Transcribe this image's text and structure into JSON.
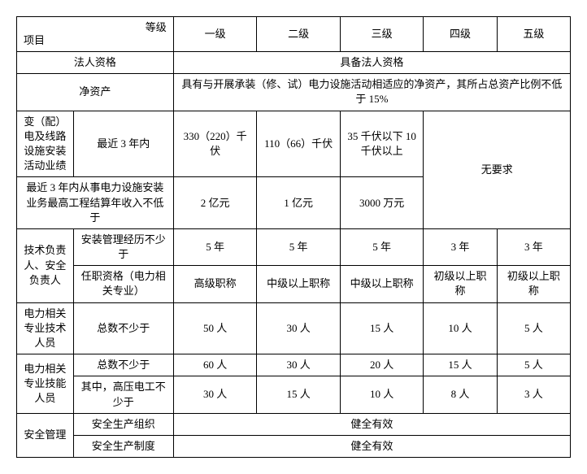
{
  "meta": {
    "font_family": "SimSun",
    "font_size": 13,
    "border_color": "#000000",
    "background_color": "#ffffff",
    "text_color": "#000000"
  },
  "header": {
    "corner_top": "等级",
    "corner_bottom": "项目",
    "levels": [
      "一级",
      "二级",
      "三级",
      "四级",
      "五级"
    ]
  },
  "rows": {
    "legal": {
      "label": "法人资格",
      "value": "具备法人资格"
    },
    "net_assets": {
      "label": "净资产",
      "value": "具有与开展承装（修、试）电力设施活动相适应的净资产，其所占总资产比例不低于 15%"
    },
    "performance": {
      "group_label": "变（配）电及线路设施安装活动业绩",
      "sub_label": "最近 3 年内",
      "lv1": "330（220）千伏",
      "lv2": "110（66）千伏",
      "lv3": "35 千伏以下 10 千伏以上",
      "no_req": "无要求"
    },
    "revenue": {
      "label": "最近 3 年内从事电力设施安装业务最高工程结算年收入不低于",
      "lv1": "2 亿元",
      "lv2": "1 亿元",
      "lv3": "3000 万元"
    },
    "tech_lead": {
      "group_label": "技术负责人、安全负责人",
      "exp_label": "安装管理经历不少于",
      "exp": {
        "lv1": "5 年",
        "lv2": "5 年",
        "lv3": "5 年",
        "lv4": "3 年",
        "lv5": "3 年"
      },
      "title_label": "任职资格（电力相关专业）",
      "title": {
        "lv1": "高级职称",
        "lv2": "中级以上职称",
        "lv3": "中级以上职称",
        "lv4": "初级以上职称",
        "lv5": "初级以上职称"
      }
    },
    "tech_staff": {
      "group_label": "电力相关专业技术人员",
      "sub_label": "总数不少于",
      "counts": {
        "lv1": "50 人",
        "lv2": "30 人",
        "lv3": "15 人",
        "lv4": "10 人",
        "lv5": "5 人"
      }
    },
    "skill_staff": {
      "group_label": "电力相关专业技能人员",
      "total_label": "总数不少于",
      "total": {
        "lv1": "60 人",
        "lv2": "30 人",
        "lv3": "20 人",
        "lv4": "15 人",
        "lv5": "5 人"
      },
      "hv_label": "其中，高压电工不少于",
      "hv": {
        "lv1": "30 人",
        "lv2": "15 人",
        "lv3": "10 人",
        "lv4": "8 人",
        "lv5": "3 人"
      }
    },
    "safety": {
      "group_label": "安全管理",
      "org_label": "安全生产组织",
      "org_value": "健全有效",
      "sys_label": "安全生产制度",
      "sys_value": "健全有效"
    }
  }
}
